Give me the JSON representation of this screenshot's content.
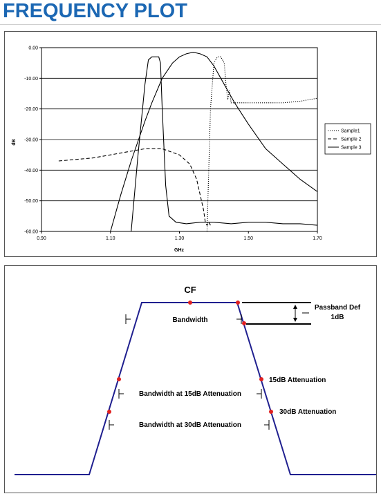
{
  "page": {
    "title": "FREQUENCY PLOT"
  },
  "chart_data": {
    "type": "line",
    "xlabel": "GHz",
    "ylabel": "dB",
    "xlim": [
      0.9,
      1.7
    ],
    "ylim": [
      -60,
      0
    ],
    "x_ticks": [
      "0.90",
      "1.10",
      "1.30",
      "1.50",
      "1.70"
    ],
    "y_ticks": [
      "0.00",
      "-10.00",
      "-20.00",
      "-30.00",
      "-40.00",
      "-50.00",
      "-60.00"
    ],
    "grid": "horizontal",
    "legend_position": "right",
    "series": [
      {
        "name": "Sample1",
        "style": "dotted",
        "x": [
          1.38,
          1.39,
          1.4,
          1.41,
          1.42,
          1.43,
          1.435,
          1.44,
          1.445,
          1.45,
          1.46,
          1.48,
          1.5,
          1.55,
          1.6,
          1.65,
          1.7
        ],
        "y": [
          -60,
          -20,
          -5,
          -3,
          -3,
          -5,
          -12,
          -17,
          -14,
          -18,
          -18,
          -18,
          -18,
          -18,
          -18,
          -17.5,
          -16.5
        ]
      },
      {
        "name": "Sample 2",
        "style": "dashed",
        "x": [
          0.95,
          1.0,
          1.05,
          1.1,
          1.15,
          1.2,
          1.25,
          1.3,
          1.33,
          1.35,
          1.36,
          1.37,
          1.375,
          1.38,
          1.385,
          1.39
        ],
        "y": [
          -37,
          -36.5,
          -36,
          -35,
          -34,
          -33,
          -33,
          -35,
          -38,
          -43,
          -48,
          -53,
          -57,
          -58,
          -57,
          -58
        ]
      },
      {
        "name": "Sample 3",
        "style": "solid",
        "x": [
          1.1,
          1.13,
          1.16,
          1.2,
          1.22,
          1.25,
          1.28,
          1.3,
          1.32,
          1.34,
          1.36,
          1.38,
          1.4,
          1.43,
          1.46,
          1.5,
          1.55,
          1.6,
          1.65,
          1.7
        ],
        "y": [
          -60,
          -48,
          -37,
          -24,
          -18,
          -10,
          -5,
          -3,
          -2,
          -1.5,
          -2,
          -3,
          -6,
          -12,
          -18,
          -25,
          -33,
          -38,
          -43,
          -47
        ]
      },
      {
        "name": "",
        "style": "solid",
        "x": [
          1.16,
          1.18,
          1.2,
          1.21,
          1.22,
          1.23,
          1.24,
          1.245,
          1.25,
          1.26,
          1.27,
          1.29,
          1.32,
          1.36,
          1.4,
          1.45,
          1.5,
          1.55,
          1.6,
          1.65,
          1.7
        ],
        "y": [
          -60,
          -35,
          -12,
          -4,
          -3,
          -3,
          -3,
          -5,
          -20,
          -45,
          -55,
          -57,
          -57.5,
          -57,
          -57,
          -57.5,
          -57,
          -57,
          -57.5,
          -57.5,
          -58
        ]
      }
    ]
  },
  "diagram": {
    "cf_label": "CF",
    "bandwidth_label": "Bandwidth",
    "passband_label": "Passband Def",
    "passband_value": "1dB",
    "bw15_label": "Bandwidth at 15dB Attenuation",
    "bw30_label": "Bandwidth at 30dB Attenuation",
    "att15_label": "15dB Attenuation",
    "att30_label": "30dB Attenuation",
    "line_color": "#1f1f8f",
    "dot_color": "#e02020"
  }
}
